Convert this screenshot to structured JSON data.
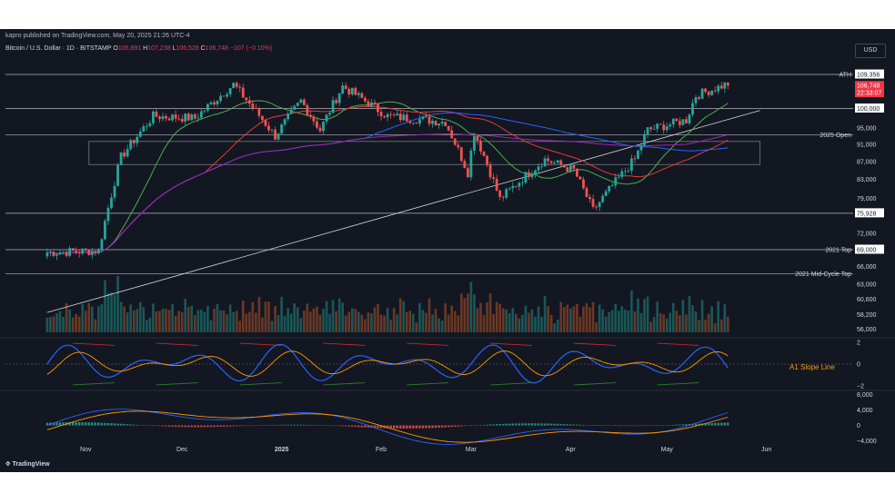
{
  "header": {
    "publisher": "kapro published on TradingView.com, May 20, 2025 21:26 UTC-4",
    "symbol": "Bitcoin / U.S. Dollar · 1D · BITSTAMP",
    "open": "106,891",
    "high": "107,238",
    "low": "106,528",
    "close": "106,748",
    "change": "−107 (−0.10%)",
    "ohlc_labels": {
      "o": "O",
      "h": "H",
      "l": "L",
      "c": "C"
    }
  },
  "currency_button": "USD",
  "footer": {
    "brand": "TradingView"
  },
  "colors": {
    "background": "#131722",
    "up": "#26a69a",
    "down": "#ef5350",
    "ma_green": "#4caf50",
    "ma_red": "#e53935",
    "ma_blue": "#2962ff",
    "ma_purple": "#9c27b0",
    "level_line": "#b2b5be",
    "osc_blue": "#2962ff",
    "osc_orange": "#ff9800",
    "price_tag": "#f23645"
  },
  "chart_data": [
    {
      "type": "candlestick",
      "x_axis_labels": [
        "Nov",
        "Dec",
        "2025",
        "Feb",
        "Mar",
        "Apr",
        "May",
        "Jun"
      ],
      "y_ticks": [
        56000,
        58200,
        60600,
        63000,
        66000,
        69000,
        72000,
        75928,
        79000,
        83000,
        87000,
        91000,
        95000,
        100000,
        109356
      ],
      "y_tick_labels": [
        "56,000",
        "58,200",
        "60,600",
        "63,000",
        "66,000",
        "69,000",
        "72,000",
        "75,928",
        "79,000",
        "83,000",
        "87,000",
        "91,000",
        "95,000",
        "100,000",
        "109,356"
      ],
      "last_price": "106,748",
      "countdown": "22:33:07",
      "ylim": [
        55000,
        112000
      ],
      "anchors": [
        [
          "2024-10-20",
          68500
        ],
        [
          "2024-11-05",
          68800
        ],
        [
          "2024-11-12",
          88000
        ],
        [
          "2024-11-22",
          98000
        ],
        [
          "2024-12-05",
          97500
        ],
        [
          "2024-12-17",
          106500
        ],
        [
          "2024-12-30",
          93000
        ],
        [
          "2025-01-07",
          102000
        ],
        [
          "2025-01-13",
          94500
        ],
        [
          "2025-01-20",
          106000
        ],
        [
          "2025-02-03",
          98000
        ],
        [
          "2025-02-21",
          96500
        ],
        [
          "2025-02-28",
          84500
        ],
        [
          "2025-03-02",
          94000
        ],
        [
          "2025-03-10",
          78800
        ],
        [
          "2025-03-24",
          87500
        ],
        [
          "2025-04-02",
          85000
        ],
        [
          "2025-04-08",
          76500
        ],
        [
          "2025-04-21",
          87500
        ],
        [
          "2025-04-25",
          94500
        ],
        [
          "2025-05-07",
          97000
        ],
        [
          "2025-05-10",
          103500
        ],
        [
          "2025-05-20",
          106748
        ]
      ],
      "levels": [
        {
          "label": "ATH",
          "value": 109356,
          "tag": "109,356"
        },
        {
          "label": "",
          "value": 100000,
          "tag": "100,000"
        },
        {
          "label": "2025 Open",
          "value": 93347,
          "tag": "93,347"
        },
        {
          "label": "",
          "value": 75928,
          "tag": "75,928"
        },
        {
          "label": "2021 Top",
          "value": 69000,
          "tag": "69,000"
        },
        {
          "label": "2021 Mid-Cycle Top",
          "value": 64800,
          "tag": ""
        }
      ],
      "range_box": {
        "top": 91700,
        "bottom": 86300,
        "from": "2024-11-02",
        "to": "2025-05-30"
      },
      "trendline": {
        "from": [
          "2024-10-20",
          58500
        ],
        "to": [
          "2025-05-30",
          99500
        ]
      }
    },
    {
      "type": "line",
      "name": "oscillator",
      "y_tick_labels": [
        "2",
        "0",
        "−2"
      ],
      "annotation": "A1 Slope Line",
      "ylim": [
        -2.4,
        2.4
      ]
    },
    {
      "type": "bar",
      "name": "momentum histogram",
      "y_tick_labels": [
        "8,000",
        "4,000",
        "0",
        "−4,000"
      ],
      "ylim": [
        -5000,
        9000
      ]
    }
  ]
}
